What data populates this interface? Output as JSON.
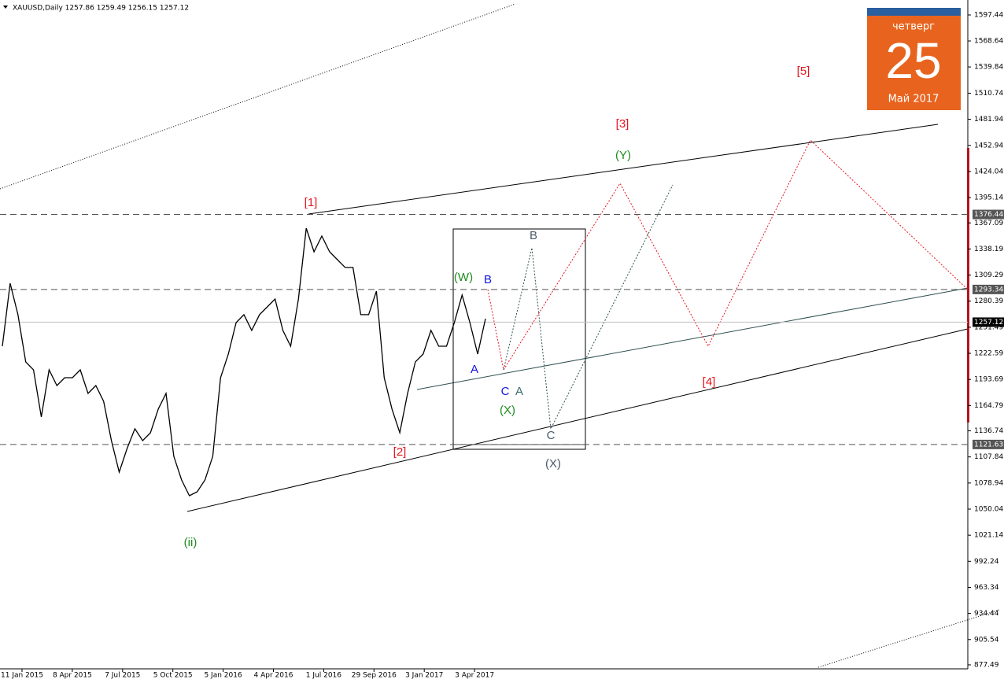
{
  "chart_data": {
    "type": "line",
    "header": "XAUUSD,Daily  1257.86 1259.49 1256.15 1257.12",
    "color": "#000000",
    "values": [
      1230.5,
      1300.2,
      1265.4,
      1213.1,
      1204.3,
      1152.1,
      1204.3,
      1186.9,
      1195.6,
      1195.6,
      1204.3,
      1178.2,
      1186.9,
      1169.5,
      1125.9,
      1091.0,
      1117.2,
      1139.0,
      1125.9,
      1134.6,
      1160.8,
      1178.2,
      1108.5,
      1082.3,
      1064.9,
      1069.2,
      1082.3,
      1108.5,
      1195.6,
      1221.8,
      1256.6,
      1265.4,
      1248.0,
      1265.4,
      1274.1,
      1282.8,
      1248.0,
      1230.5,
      1282.8,
      1361.2,
      1335.1,
      1352.5,
      1335.1,
      1326.4,
      1317.7,
      1317.7,
      1265.4,
      1265.4,
      1291.5,
      1195.6,
      1160.8,
      1134.6,
      1178.2,
      1213.1,
      1221.8,
      1248.0,
      1230.5,
      1230.5,
      1256.6,
      1287.2,
      1256.6,
      1221.8,
      1261.0
    ],
    "ylim": [
      873.1,
      1614.0
    ],
    "yticks": [
      1597.44,
      1568.64,
      1539.84,
      1510.74,
      1481.94,
      1452.94,
      1424.04,
      1395.14,
      1367.09,
      1338.19,
      1309.29,
      1280.39,
      1251.49,
      1222.59,
      1193.69,
      1164.79,
      1136.74,
      1107.84,
      1078.94,
      1050.04,
      1021.14,
      992.24,
      963.34,
      934.44,
      905.54,
      877.49
    ],
    "x_labels": [
      "11 Jan 2015",
      "8 Apr 2015",
      "7 Jul 2015",
      "5 Oct 2015",
      "5 Jan 2016",
      "4 Apr 2016",
      "1 Jul 2016",
      "29 Sep 2016",
      "3 Jan 2017",
      "3 Apr 2017"
    ],
    "levels": [
      {
        "value": 1376.44,
        "style": "dashed"
      },
      {
        "value": 1293.34,
        "style": "dashed"
      },
      {
        "value": 1257.12,
        "style": "current"
      },
      {
        "value": 1121.63,
        "style": "dashed"
      }
    ],
    "widget": {
      "weekday": "четверг",
      "day": "25",
      "month": "Май 2017"
    },
    "annotations": [
      {
        "text": "[1]",
        "color": "#e8141e"
      },
      {
        "text": "[2]",
        "color": "#e8141e"
      },
      {
        "text": "[3]",
        "color": "#e8141e"
      },
      {
        "text": "[4]",
        "color": "#e8141e"
      },
      {
        "text": "[5]",
        "color": "#e8141e"
      },
      {
        "text": "(ii)",
        "color": "#1e8c1e"
      },
      {
        "text": "(W)",
        "color": "#1e8c1e"
      },
      {
        "text": "(Y)",
        "color": "#1e8c1e"
      },
      {
        "text": "(X)",
        "color": "#1e8c1e"
      },
      {
        "text": "(X)",
        "color": "#4a5a6a"
      },
      {
        "text": "A",
        "color": "#1414dc"
      },
      {
        "text": "B",
        "color": "#1414dc"
      },
      {
        "text": "C",
        "color": "#1414dc"
      },
      {
        "text": "A",
        "color": "#3a6a6a"
      },
      {
        "text": "B",
        "color": "#4a5a6a"
      },
      {
        "text": "C",
        "color": "#4a5a6a"
      }
    ]
  }
}
